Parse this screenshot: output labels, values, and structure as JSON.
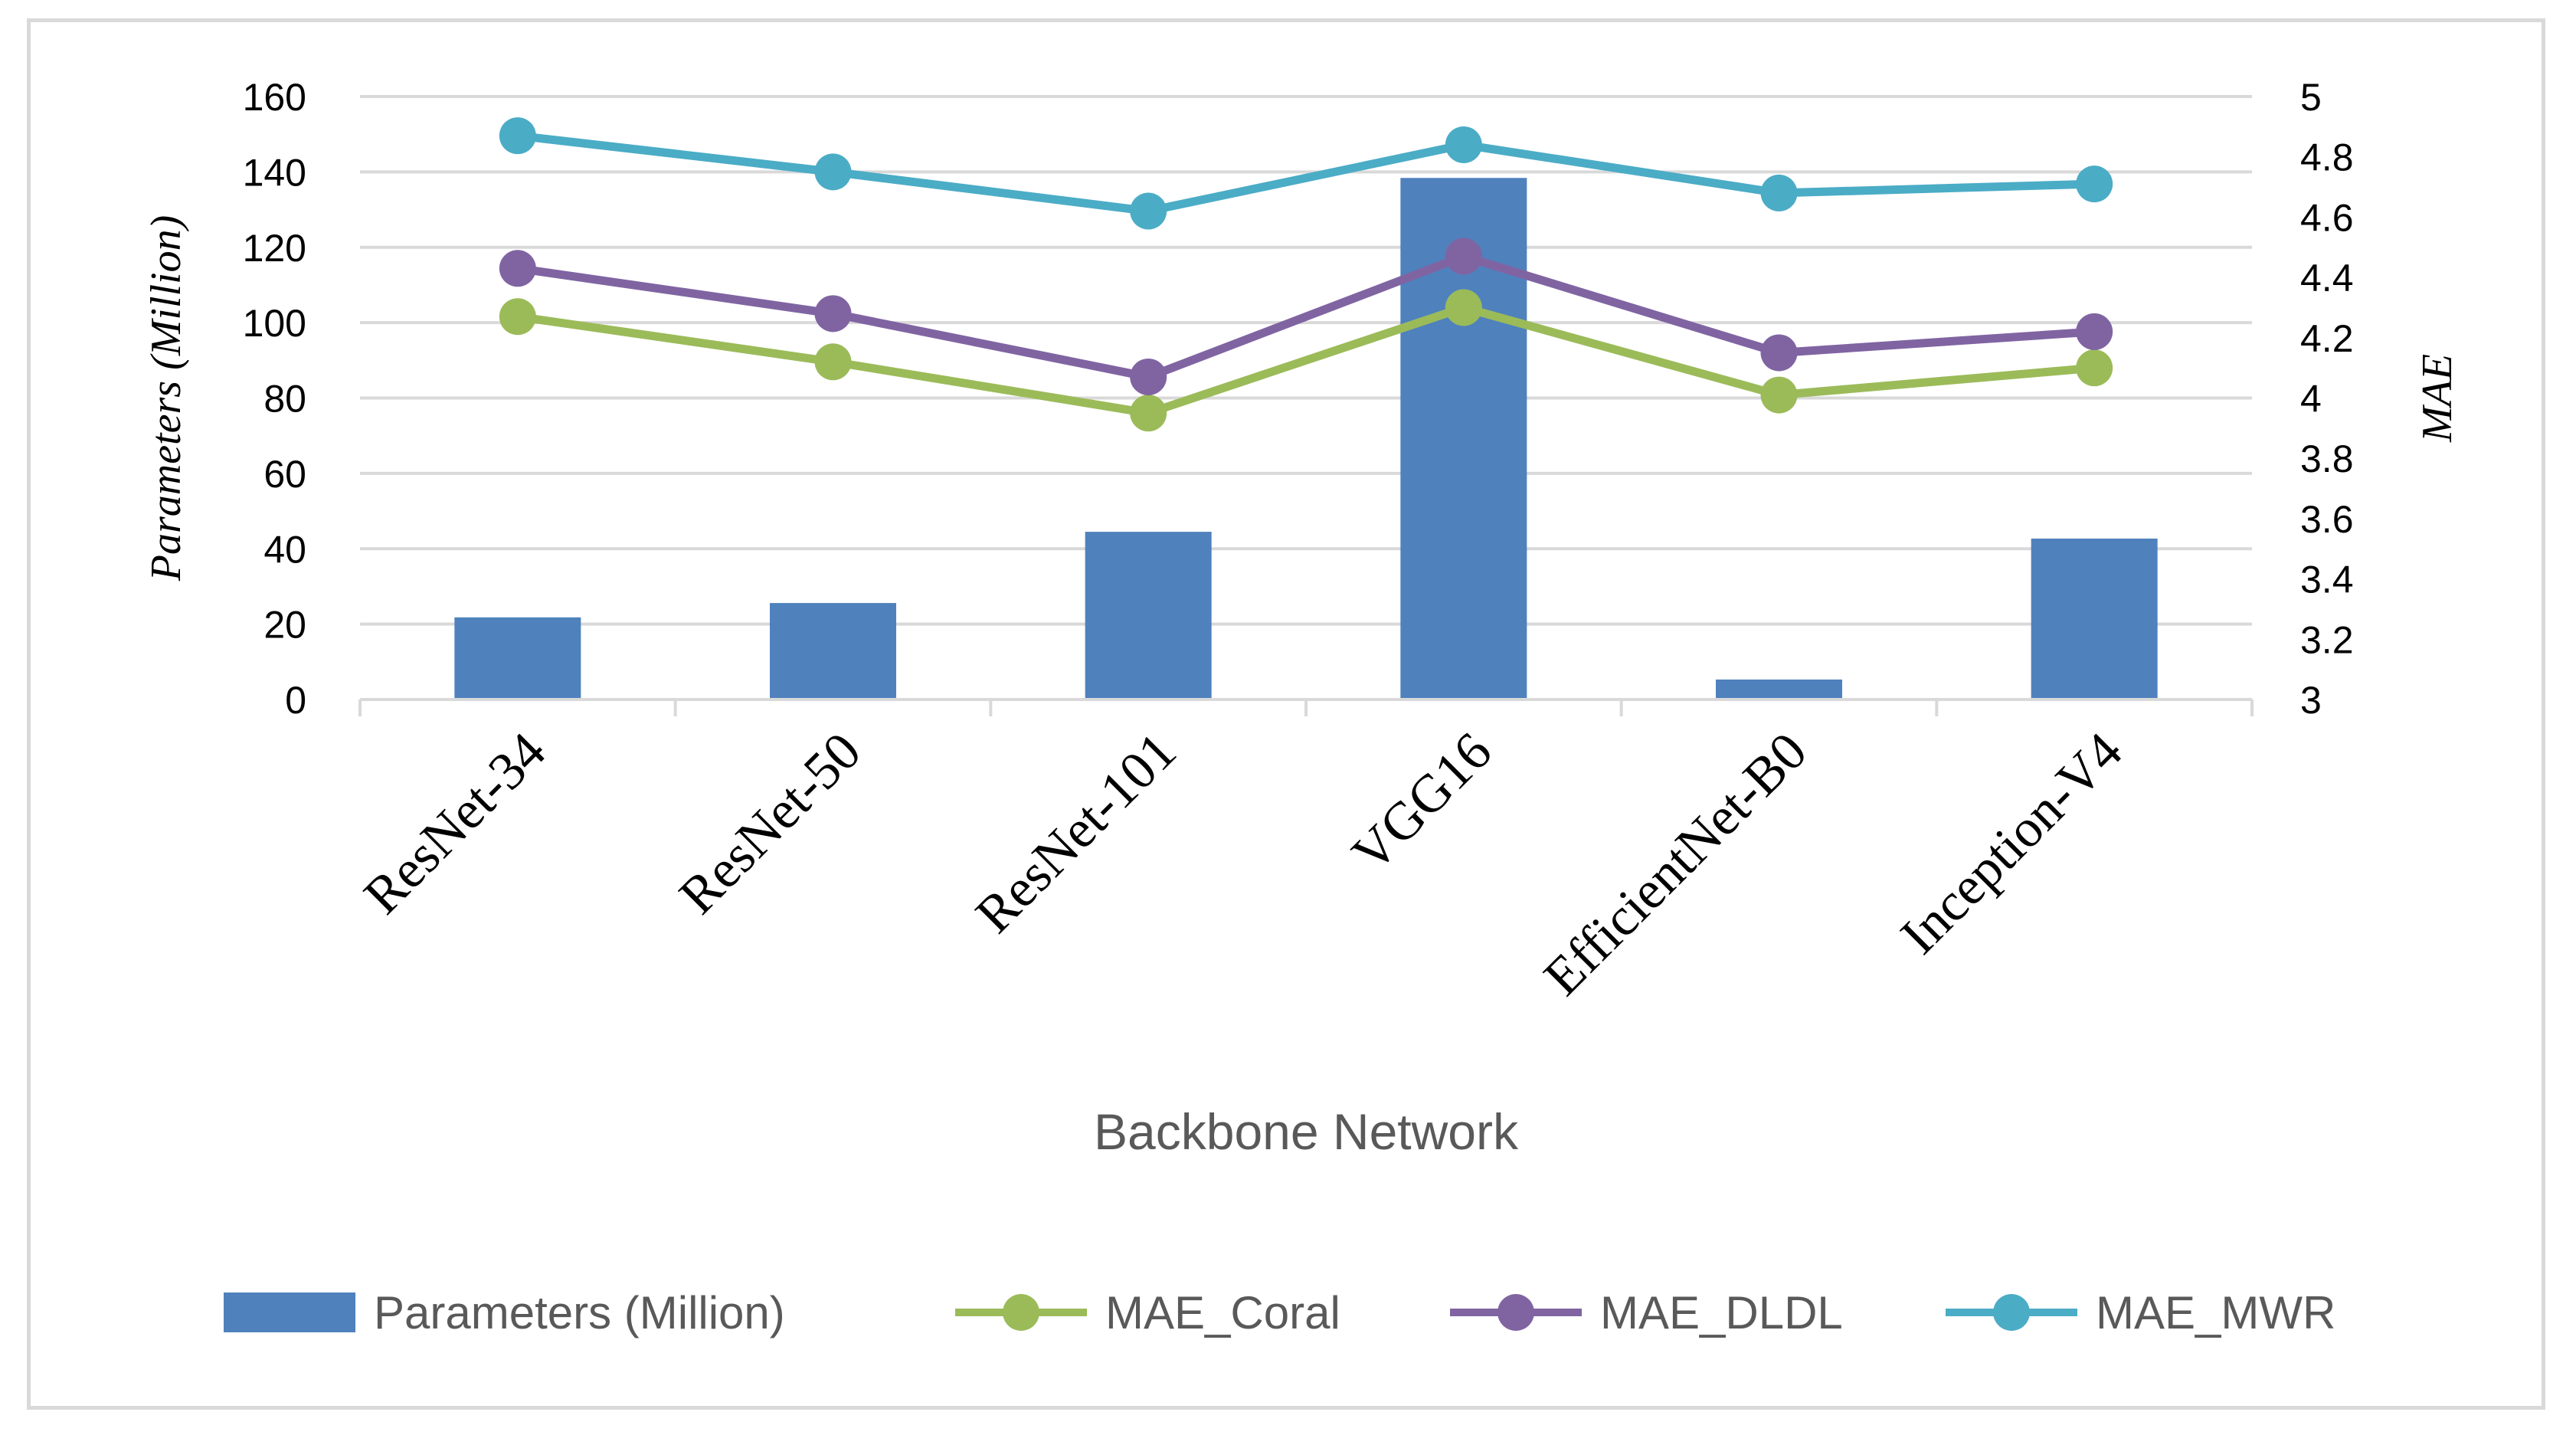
{
  "chart_data": {
    "type": "bar",
    "title": "",
    "xlabel": "Backbone Network",
    "ylabel": "Parameters (Million)",
    "y2label": "MAE",
    "categories": [
      "ResNet-34",
      "ResNet-50",
      "ResNet-101",
      "VGG16",
      "EfficientNet-B0",
      "Inception-V4"
    ],
    "ylim": [
      0,
      160
    ],
    "y_ticks": [
      "0",
      "20",
      "40",
      "60",
      "80",
      "100",
      "120",
      "140",
      "160"
    ],
    "y2lim": [
      3,
      5
    ],
    "y2_ticks": [
      "3",
      "3.2",
      "3.4",
      "3.6",
      "3.8",
      "4",
      "4.2",
      "4.4",
      "4.6",
      "4.8",
      "5"
    ],
    "legend_position": "bottom",
    "series": [
      {
        "name": "Parameters (Million)",
        "type": "bar",
        "axis": "left",
        "color": "#4f81bd",
        "values": [
          21.8,
          25.6,
          44.5,
          138.4,
          5.3,
          42.7
        ]
      },
      {
        "name": "MAE_Coral",
        "type": "line",
        "axis": "right",
        "color": "#9bbb59",
        "values": [
          4.27,
          4.12,
          3.95,
          4.3,
          4.01,
          4.1
        ]
      },
      {
        "name": "MAE_DLDL",
        "type": "line",
        "axis": "right",
        "color": "#8064a2",
        "values": [
          4.43,
          4.28,
          4.07,
          4.47,
          4.15,
          4.22
        ]
      },
      {
        "name": "MAE_MWR",
        "type": "line",
        "axis": "right",
        "color": "#4bacc6",
        "values": [
          4.87,
          4.75,
          4.62,
          4.84,
          4.68,
          4.71
        ]
      }
    ]
  }
}
